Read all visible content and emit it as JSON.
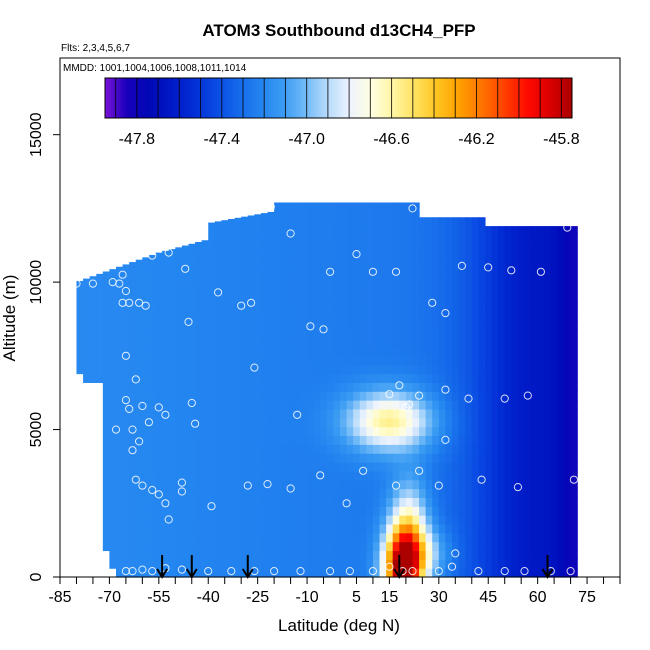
{
  "chart_data": {
    "type": "heatmap",
    "title": "ATOM3 Southbound d13CH4_PFP",
    "subtitle_flights": "Flts: 2,3,4,5,6,7",
    "subtitle_dates": "MMDD: 1001,1004,1006,1008,1011,1014",
    "xlabel": "Latitude (deg N)",
    "ylabel": "Altitude (m)",
    "xlim": [
      -85,
      85
    ],
    "ylim": [
      0,
      17600
    ],
    "x_ticks": [
      -85,
      -70,
      -55,
      -40,
      -25,
      -10,
      5,
      15,
      30,
      45,
      60,
      75
    ],
    "y_ticks": [
      0,
      5000,
      10000,
      15000
    ],
    "colorbar": {
      "ticks": [
        -47.8,
        -47.4,
        -47.0,
        -46.6,
        -46.2,
        -45.8
      ],
      "range": [
        -47.95,
        -45.75
      ],
      "colors": [
        "#7a12d8",
        "#1800bb",
        "#0009b6",
        "#0019c6",
        "#022ed6",
        "#0a4be3",
        "#1569ea",
        "#2385f0",
        "#3a9bf3",
        "#70b9f7",
        "#b7dbfb",
        "#edf3ff",
        "#fffee0",
        "#fff5a0",
        "#ffe05a",
        "#ffc21c",
        "#ff9d00",
        "#ff7100",
        "#ff3e00",
        "#ff0a00",
        "#db0000",
        "#ab0000"
      ]
    },
    "field": {
      "description": "interpolated d13CH4 curtain",
      "background": -47.25,
      "features": [
        {
          "kind": "blob",
          "lat": 15,
          "alt": 5300,
          "sx": 9,
          "sy": 700,
          "amp": 0.7
        },
        {
          "kind": "blob",
          "lat": 19,
          "alt": 300,
          "sx": 4,
          "sy": 900,
          "amp": 1.4
        },
        {
          "kind": "blob",
          "lat": 21,
          "alt": 1500,
          "sx": 4,
          "sy": 1200,
          "amp": 0.6
        },
        {
          "kind": "blob",
          "lat": 26,
          "alt": 800,
          "sx": 5,
          "sy": 600,
          "amp": 0.3
        },
        {
          "kind": "band",
          "lat": 60,
          "sx": 14,
          "amp": -0.35
        },
        {
          "kind": "band",
          "lat": 72,
          "sx": 4,
          "amp": -0.25
        }
      ]
    },
    "samples": [
      [
        -80,
        9950
      ],
      [
        -75,
        9950
      ],
      [
        -69,
        10000
      ],
      [
        -67,
        9950
      ],
      [
        -66,
        10250
      ],
      [
        -65,
        9700
      ],
      [
        -66,
        9300
      ],
      [
        -64,
        9300
      ],
      [
        -61,
        9300
      ],
      [
        -59,
        9200
      ],
      [
        -57,
        10900
      ],
      [
        -52,
        11000
      ],
      [
        -47,
        10450
      ],
      [
        -46,
        8650
      ],
      [
        -37,
        9650
      ],
      [
        -30,
        9200
      ],
      [
        -27,
        9300
      ],
      [
        -21,
        12550
      ],
      [
        -15,
        11650
      ],
      [
        -9,
        8500
      ],
      [
        -5,
        8400
      ],
      [
        -3,
        10350
      ],
      [
        5,
        10950
      ],
      [
        10,
        10350
      ],
      [
        17,
        10350
      ],
      [
        22,
        12500
      ],
      [
        28,
        9300
      ],
      [
        32,
        8950
      ],
      [
        37,
        10550
      ],
      [
        45,
        10500
      ],
      [
        52,
        10400
      ],
      [
        61,
        10350
      ],
      [
        69,
        11850
      ],
      [
        -65,
        7500
      ],
      [
        -62,
        6700
      ],
      [
        -65,
        6000
      ],
      [
        -64,
        5700
      ],
      [
        -60,
        5800
      ],
      [
        -55,
        5750
      ],
      [
        -53,
        5500
      ],
      [
        -45,
        5900
      ],
      [
        -44,
        5200
      ],
      [
        -58,
        5250
      ],
      [
        -63,
        5000
      ],
      [
        -68,
        5000
      ],
      [
        -61,
        4600
      ],
      [
        -63,
        4300
      ],
      [
        -26,
        7100
      ],
      [
        -13,
        5500
      ],
      [
        15,
        6200
      ],
      [
        18,
        6500
      ],
      [
        20,
        5750
      ],
      [
        24,
        6150
      ],
      [
        32,
        6350
      ],
      [
        39,
        6050
      ],
      [
        50,
        6050
      ],
      [
        57,
        6150
      ],
      [
        21,
        5850
      ],
      [
        32,
        4650
      ],
      [
        -62,
        3300
      ],
      [
        -60,
        3100
      ],
      [
        -57,
        2950
      ],
      [
        -55,
        2800
      ],
      [
        -53,
        2500
      ],
      [
        -52,
        1950
      ],
      [
        -48,
        3200
      ],
      [
        -48,
        2900
      ],
      [
        -39,
        2400
      ],
      [
        -28,
        3100
      ],
      [
        -22,
        3150
      ],
      [
        -15,
        3000
      ],
      [
        -6,
        3450
      ],
      [
        2,
        2500
      ],
      [
        7,
        3600
      ],
      [
        17,
        3100
      ],
      [
        24,
        3600
      ],
      [
        30,
        3100
      ],
      [
        43,
        3300
      ],
      [
        54,
        3050
      ],
      [
        71,
        3300
      ],
      [
        -65,
        200
      ],
      [
        -63,
        200
      ],
      [
        -60,
        250
      ],
      [
        -57,
        200
      ],
      [
        -53,
        300
      ],
      [
        -48,
        250
      ],
      [
        -40,
        200
      ],
      [
        -33,
        200
      ],
      [
        -26,
        200
      ],
      [
        -20,
        200
      ],
      [
        -12,
        200
      ],
      [
        -3,
        200
      ],
      [
        3,
        200
      ],
      [
        10,
        200
      ],
      [
        15,
        350
      ],
      [
        19,
        200
      ],
      [
        22,
        200
      ],
      [
        30,
        200
      ],
      [
        34,
        350
      ],
      [
        35,
        800
      ],
      [
        42,
        200
      ],
      [
        50,
        200
      ],
      [
        56,
        200
      ],
      [
        64,
        200
      ],
      [
        70,
        200
      ]
    ],
    "arrows_lat": [
      -54,
      -45,
      -28,
      18,
      63
    ]
  }
}
